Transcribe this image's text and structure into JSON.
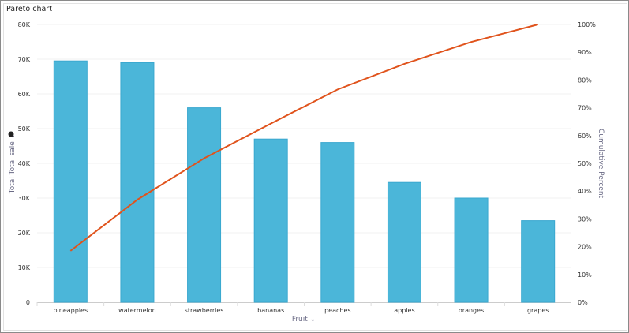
{
  "title": "Pareto chart",
  "chart_data": {
    "type": "bar+line",
    "title": "Pareto chart",
    "xlabel": "Fruit",
    "ylabel": "Total Total sale",
    "y2label": "Cumulative Percent",
    "categories": [
      "pineapples",
      "watermelon",
      "strawberries",
      "bananas",
      "peaches",
      "apples",
      "oranges",
      "grapes"
    ],
    "series": [
      {
        "name": "Total Total sale",
        "type": "bar",
        "axis": "left",
        "values": [
          69500,
          69000,
          56000,
          47000,
          46000,
          34500,
          30000,
          23500
        ]
      },
      {
        "name": "Cumulative Percent",
        "type": "line",
        "axis": "right",
        "values": [
          18.5,
          36.9,
          51.8,
          64.3,
          76.6,
          85.8,
          93.7,
          100
        ]
      }
    ],
    "ylim": [
      0,
      80000
    ],
    "y2lim": [
      0,
      100
    ],
    "yticks": [
      "0",
      "10K",
      "20K",
      "30K",
      "40K",
      "50K",
      "60K",
      "70K",
      "80K"
    ],
    "y2ticks": [
      "0%",
      "10%",
      "20%",
      "30%",
      "40%",
      "50%",
      "60%",
      "70%",
      "80%",
      "90%",
      "100%"
    ],
    "grid": true,
    "colors": {
      "bar": "#4bb6d9",
      "bar_edge": "#3aa8cf",
      "line": "#e0531c",
      "grid": "#f1f1f1",
      "axis_label": "#6b6b86"
    }
  }
}
